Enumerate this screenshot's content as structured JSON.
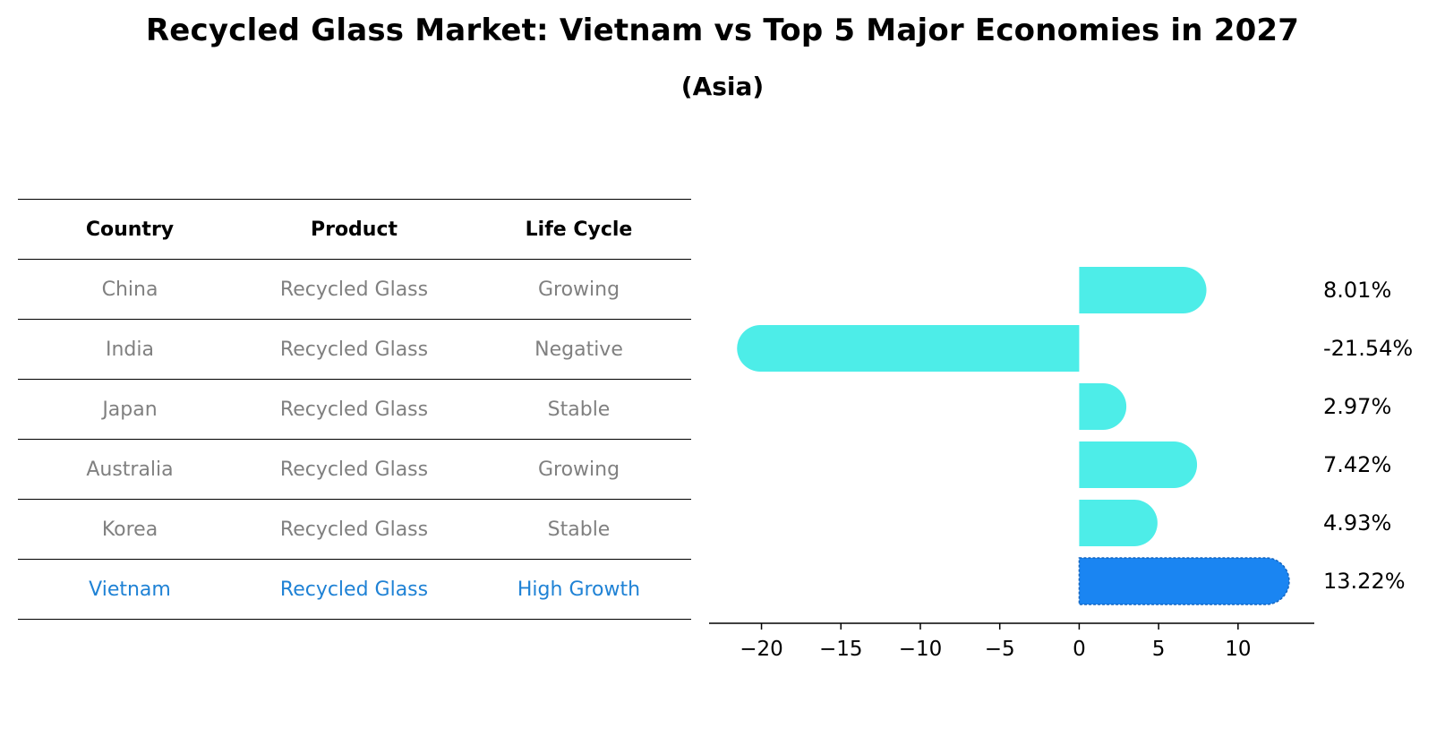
{
  "title": "Recycled Glass Market: Vietnam vs Top 5 Major Economies in 2027",
  "subtitle": "(Asia)",
  "table": {
    "headers": [
      "Country",
      "Product",
      "Life Cycle"
    ],
    "rows": [
      {
        "country": "China",
        "product": "Recycled Glass",
        "life_cycle": "Growing",
        "highlight": false
      },
      {
        "country": "India",
        "product": "Recycled Glass",
        "life_cycle": "Negative",
        "highlight": false
      },
      {
        "country": "Japan",
        "product": "Recycled Glass",
        "life_cycle": "Stable",
        "highlight": false
      },
      {
        "country": "Australia",
        "product": "Recycled Glass",
        "life_cycle": "Growing",
        "highlight": false
      },
      {
        "country": "Korea",
        "product": "Recycled Glass",
        "life_cycle": "Stable",
        "highlight": false
      },
      {
        "country": "Vietnam",
        "product": "Recycled Glass",
        "life_cycle": "High Growth",
        "highlight": true
      }
    ]
  },
  "chart_data": {
    "type": "bar",
    "orientation": "horizontal",
    "categories": [
      "China",
      "India",
      "Japan",
      "Australia",
      "Korea",
      "Vietnam"
    ],
    "values": [
      8.01,
      -21.54,
      2.97,
      7.42,
      4.93,
      13.22
    ],
    "value_labels": [
      "8.01%",
      "-21.54%",
      "2.97%",
      "7.42%",
      "4.93%",
      "13.22%"
    ],
    "xlim": [
      -23.3,
      14.8
    ],
    "xticks": [
      -20,
      -15,
      -10,
      -5,
      0,
      5,
      10
    ],
    "xtick_labels": [
      "−20",
      "−15",
      "−10",
      "−5",
      "0",
      "5",
      "10"
    ],
    "colors": {
      "default": "#4dede8",
      "highlight": "#1a85f2",
      "label": "#000000",
      "axis": "#000000"
    },
    "highlight_category": "Vietnam",
    "title": "Recycled Glass Market: Vietnam vs Top 5 Major Economies in 2027",
    "xlabel": "",
    "ylabel": "",
    "grid": false
  }
}
